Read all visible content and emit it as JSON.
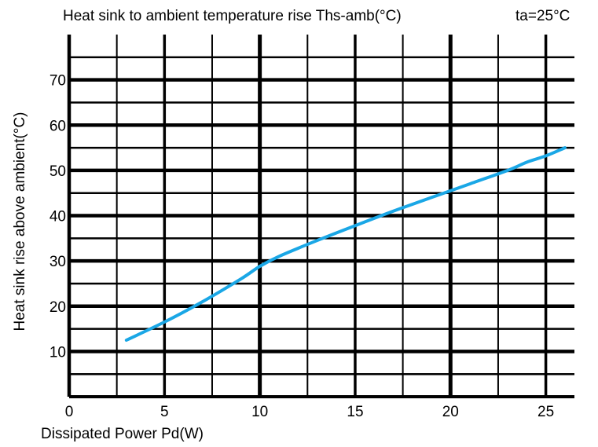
{
  "chart_data": {
    "type": "line",
    "title": "Heat sink to ambient temperature rise Ths-amb(°C)",
    "condition": "ta=25°C",
    "xlabel": "Dissipated Power Pd(W)",
    "ylabel": "Heat sink rise above ambient(°C)",
    "xlim": [
      0,
      26.5
    ],
    "ylim": [
      0,
      80
    ],
    "xticks": [
      0,
      5,
      10,
      15,
      20,
      25
    ],
    "yticks": [
      10,
      20,
      30,
      40,
      50,
      60,
      70
    ],
    "grid": true,
    "series_color": "#1aa7e6",
    "series": [
      {
        "x": [
          3,
          5,
          7,
          9,
          10,
          11,
          13,
          15,
          17,
          19,
          21,
          23,
          24,
          25,
          26
        ],
        "values": [
          12.5,
          16.5,
          21.0,
          26.0,
          28.8,
          31.0,
          34.5,
          37.8,
          41.0,
          44.0,
          47.0,
          50.0,
          51.8,
          53.2,
          55.0
        ]
      }
    ]
  }
}
